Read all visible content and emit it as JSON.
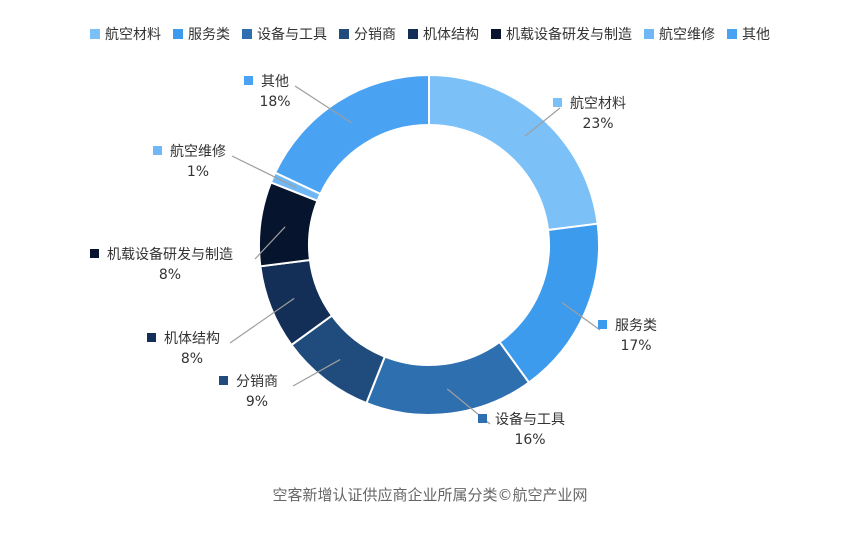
{
  "chart_data": {
    "type": "pie",
    "variant": "donut",
    "title": "",
    "legend_position": "top",
    "categories": [
      "航空材料",
      "服务类",
      "设备与工具",
      "分销商",
      "机体结构",
      "机载设备研发与制造",
      "航空维修",
      "其他"
    ],
    "values": [
      23,
      17,
      16,
      9,
      8,
      8,
      1,
      18
    ],
    "value_labels": [
      "23%",
      "17%",
      "16%",
      "9%",
      "8%",
      "8%",
      "1%",
      "18%"
    ],
    "colors": [
      "#7cc0f8",
      "#3d9bee",
      "#2e6faf",
      "#1f4c7c",
      "#142f57",
      "#07142e",
      "#6fb8f5",
      "#4aa2f2"
    ]
  },
  "caption": "空客新增认证供应商企业所属分类©航空产业网"
}
